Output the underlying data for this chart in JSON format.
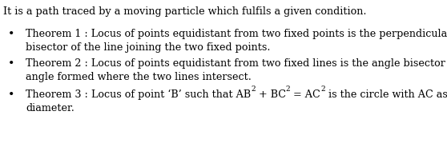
{
  "background_color": "#ffffff",
  "intro_text": "It is a path traced by a moving particle which fulfils a given condition.",
  "t1_label": "Theorem 1 : ",
  "t1_line1": "Locus of points equidistant from two fixed points is the perpendicular",
  "t1_line2": "bisector of the line joining the two fixed points.",
  "t2_label": "Theorem 2 : ",
  "t2_line1": "Locus of points equidistant from two fixed lines is the angle bisector of the",
  "t2_line2": "angle formed where the two lines intersect.",
  "t3_label": "Theorem 3 : ",
  "t3_pre": "Locus of point ‘B’ such that AB",
  "t3_mid1": " + BC",
  "t3_mid2": " = AC",
  "t3_post": " is the circle with AC as",
  "t3_line2": "diameter.",
  "font_size": 9.2,
  "super_font_size": 6.5,
  "text_color": "#000000",
  "font_family": "DejaVu Serif",
  "fig_w": 5.58,
  "fig_h": 2.04,
  "dpi": 100
}
